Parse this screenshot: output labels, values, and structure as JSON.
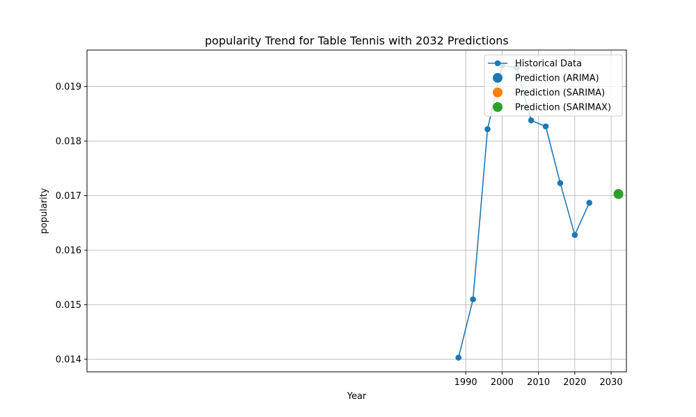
{
  "chart_data": {
    "type": "line",
    "title": "popularity Trend for Table Tennis with 2032 Predictions",
    "xlabel": "Year",
    "ylabel": "popularity",
    "xlim": [
      1885.8,
      2034.2
    ],
    "ylim": [
      0.01377,
      0.01967
    ],
    "xticks": [
      1990,
      2000,
      2010,
      2020,
      2030
    ],
    "xtick_labels": [
      "1990",
      "2000",
      "2010",
      "2020",
      "2030"
    ],
    "yticks": [
      0.014,
      0.015,
      0.016,
      0.017,
      0.018,
      0.019
    ],
    "ytick_labels": [
      "0.014",
      "0.015",
      "0.016",
      "0.017",
      "0.018",
      "0.019"
    ],
    "grid": true,
    "legend_position": "top-right",
    "series": [
      {
        "name": "Historical Data",
        "kind": "line-marker",
        "color": "#1f77b4",
        "x": [
          1988,
          1992,
          1996,
          2000,
          2004,
          2008,
          2012,
          2016,
          2020,
          2024
        ],
        "y": [
          0.01403,
          0.0151,
          0.01822,
          0.01939,
          0.01935,
          0.01838,
          0.01827,
          0.01723,
          0.01628,
          0.01687
        ]
      },
      {
        "name": "Prediction (ARIMA)",
        "kind": "point",
        "color": "#1f77b4",
        "x": [
          2032
        ],
        "y": [
          0.01703
        ]
      },
      {
        "name": "Prediction (SARIMA)",
        "kind": "point",
        "color": "#ff7f0e",
        "x": [
          2032
        ],
        "y": [
          0.01703
        ]
      },
      {
        "name": "Prediction (SARIMAX)",
        "kind": "point",
        "color": "#2ca02c",
        "x": [
          2032
        ],
        "y": [
          0.01703
        ]
      }
    ]
  }
}
